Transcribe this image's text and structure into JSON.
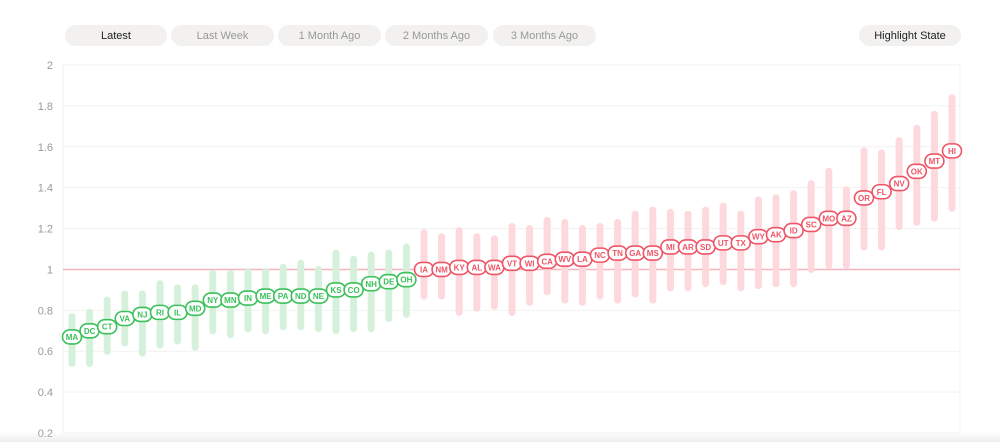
{
  "toolbar": {
    "tabs": [
      "Latest",
      "Last Week",
      "1 Month Ago",
      "2 Months Ago",
      "3 Months Ago"
    ],
    "active_tab": "Latest",
    "highlight_label": "Highlight State"
  },
  "colors": {
    "below_one": "#3cc05a",
    "below_one_band": "#d5f1db",
    "above_one": "#ee5566",
    "above_one_band": "#fdd8dc",
    "reference_line": "#f6b5bb"
  },
  "chart_data": {
    "type": "scatter",
    "ylim": [
      0.2,
      2
    ],
    "yticks": [
      "0.2",
      "0.4",
      "0.6",
      "0.8",
      "1",
      "1.2",
      "1.4",
      "1.6",
      "1.8",
      "2"
    ],
    "reference_line": 1,
    "grid": true,
    "categories": [
      "MA",
      "DC",
      "CT",
      "VA",
      "NJ",
      "RI",
      "IL",
      "MD",
      "NY",
      "MN",
      "IN",
      "ME",
      "PA",
      "ND",
      "NE",
      "KS",
      "CO",
      "NH",
      "DE",
      "OH",
      "IA",
      "NM",
      "KY",
      "AL",
      "WA",
      "VT",
      "WI",
      "CA",
      "WV",
      "LA",
      "NC",
      "TN",
      "GA",
      "MS",
      "MI",
      "AR",
      "SD",
      "UT",
      "TX",
      "WY",
      "AK",
      "ID",
      "SC",
      "MO",
      "AZ",
      "OR",
      "FL",
      "NV",
      "OK",
      "MT",
      "HI"
    ],
    "values": [
      0.67,
      0.7,
      0.72,
      0.76,
      0.78,
      0.79,
      0.79,
      0.81,
      0.85,
      0.85,
      0.86,
      0.87,
      0.87,
      0.87,
      0.87,
      0.9,
      0.9,
      0.93,
      0.94,
      0.95,
      1.0,
      1.0,
      1.01,
      1.01,
      1.01,
      1.03,
      1.03,
      1.04,
      1.05,
      1.05,
      1.07,
      1.08,
      1.08,
      1.08,
      1.11,
      1.11,
      1.11,
      1.13,
      1.13,
      1.16,
      1.17,
      1.19,
      1.22,
      1.25,
      1.25,
      1.35,
      1.38,
      1.42,
      1.48,
      1.53,
      1.58
    ],
    "high": [
      0.77,
      0.79,
      0.85,
      0.88,
      0.88,
      0.93,
      0.91,
      0.91,
      0.98,
      0.98,
      0.99,
      0.99,
      1.01,
      1.03,
      1.0,
      1.08,
      1.05,
      1.07,
      1.08,
      1.11,
      1.18,
      1.16,
      1.19,
      1.16,
      1.15,
      1.21,
      1.2,
      1.24,
      1.23,
      1.2,
      1.21,
      1.23,
      1.27,
      1.29,
      1.28,
      1.27,
      1.29,
      1.31,
      1.27,
      1.34,
      1.35,
      1.37,
      1.42,
      1.48,
      1.39,
      1.58,
      1.57,
      1.63,
      1.69,
      1.76,
      1.84
    ],
    "low": [
      0.54,
      0.54,
      0.6,
      0.64,
      0.59,
      0.63,
      0.65,
      0.62,
      0.7,
      0.68,
      0.71,
      0.7,
      0.72,
      0.72,
      0.71,
      0.7,
      0.71,
      0.71,
      0.76,
      0.78,
      0.87,
      0.87,
      0.79,
      0.81,
      0.82,
      0.79,
      0.84,
      0.89,
      0.85,
      0.84,
      0.87,
      0.85,
      0.88,
      0.85,
      0.91,
      0.91,
      0.93,
      0.94,
      0.91,
      0.92,
      0.93,
      0.93,
      1.0,
      1.02,
      1.02,
      1.11,
      1.11,
      1.21,
      1.23,
      1.25,
      1.3
    ]
  }
}
